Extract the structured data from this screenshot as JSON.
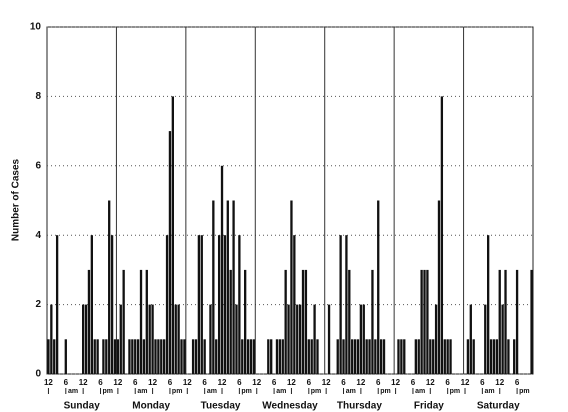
{
  "chart_data": {
    "type": "bar",
    "y_label": "Number of Cases",
    "ylim": [
      0,
      10
    ],
    "yticks": [
      0,
      2,
      4,
      6,
      8,
      10
    ],
    "grid": true,
    "color": "#111111",
    "day_labels": [
      "Sunday",
      "Monday",
      "Tuesday",
      "Wednesday",
      "Thursday",
      "Friday",
      "Saturday"
    ],
    "period_labels": [
      "am",
      "pm"
    ],
    "categories": [
      "12",
      null,
      null,
      null,
      null,
      null,
      "6",
      null,
      null,
      null,
      null,
      null,
      "12",
      null,
      null,
      null,
      null,
      null,
      "6",
      null,
      null,
      null,
      null,
      null,
      "12",
      null,
      null,
      null,
      null,
      null,
      "6",
      null,
      null,
      null,
      null,
      null,
      "12",
      null,
      null,
      null,
      null,
      null,
      "6",
      null,
      null,
      null,
      null,
      null,
      "12",
      null,
      null,
      null,
      null,
      null,
      "6",
      null,
      null,
      null,
      null,
      null,
      "12",
      null,
      null,
      null,
      null,
      null,
      "6",
      null,
      null,
      null,
      null,
      null,
      "12",
      null,
      null,
      null,
      null,
      null,
      "6",
      null,
      null,
      null,
      null,
      null,
      "12",
      null,
      null,
      null,
      null,
      null,
      "6",
      null,
      null,
      null,
      null,
      null,
      "12",
      null,
      null,
      null,
      null,
      null,
      "6",
      null,
      null,
      null,
      null,
      null,
      "12",
      null,
      null,
      null,
      null,
      null,
      "6",
      null,
      null,
      null,
      null,
      null,
      "12",
      null,
      null,
      null,
      null,
      null,
      "6",
      null,
      null,
      null,
      null,
      null,
      "12",
      null,
      null,
      null,
      null,
      null,
      "6",
      null,
      null,
      null,
      null,
      null,
      "12",
      null,
      null,
      null,
      null,
      null,
      "6",
      null,
      null,
      null,
      null,
      null,
      "12",
      null,
      null,
      null,
      null,
      null,
      "6",
      null,
      null,
      null,
      null,
      null
    ],
    "values": [
      1,
      2,
      1,
      4,
      0,
      0,
      1,
      0,
      0,
      0,
      0,
      0,
      2,
      2,
      3,
      4,
      1,
      1,
      0,
      1,
      1,
      5,
      4,
      1,
      1,
      2,
      3,
      0,
      1,
      1,
      1,
      1,
      3,
      1,
      3,
      2,
      2,
      1,
      1,
      1,
      1,
      4,
      7,
      8,
      2,
      2,
      1,
      1,
      0,
      0,
      1,
      1,
      4,
      4,
      1,
      0,
      2,
      5,
      1,
      4,
      6,
      4,
      5,
      3,
      5,
      2,
      4,
      1,
      3,
      1,
      1,
      1,
      0,
      0,
      0,
      0,
      1,
      1,
      0,
      1,
      1,
      1,
      3,
      2,
      5,
      4,
      2,
      2,
      3,
      3,
      1,
      1,
      2,
      1,
      0,
      0,
      0,
      2,
      0,
      0,
      1,
      4,
      1,
      4,
      3,
      1,
      1,
      1,
      2,
      2,
      1,
      1,
      3,
      1,
      5,
      1,
      1,
      0,
      0,
      0,
      0,
      1,
      1,
      1,
      0,
      0,
      0,
      1,
      1,
      3,
      3,
      3,
      1,
      1,
      2,
      5,
      8,
      1,
      1,
      1,
      0,
      0,
      0,
      0,
      0,
      1,
      2,
      1,
      0,
      0,
      0,
      2,
      4,
      1,
      1,
      1,
      3,
      2,
      3,
      1,
      0,
      1,
      3,
      0,
      0,
      0,
      0,
      3
    ]
  }
}
